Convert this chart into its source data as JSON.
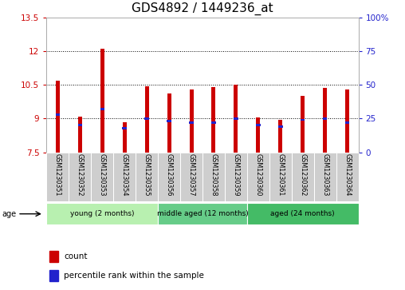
{
  "title": "GDS4892 / 1449236_at",
  "samples": [
    "GSM1230351",
    "GSM1230352",
    "GSM1230353",
    "GSM1230354",
    "GSM1230355",
    "GSM1230356",
    "GSM1230357",
    "GSM1230358",
    "GSM1230359",
    "GSM1230360",
    "GSM1230361",
    "GSM1230362",
    "GSM1230363",
    "GSM1230364"
  ],
  "bar_values": [
    10.7,
    9.1,
    12.1,
    8.85,
    10.45,
    10.1,
    10.3,
    10.4,
    10.5,
    9.05,
    8.95,
    10.0,
    10.35,
    10.3
  ],
  "percentile_values": [
    28,
    20,
    32,
    18,
    25,
    23,
    22,
    22,
    25,
    20,
    19,
    24,
    25,
    22
  ],
  "ymin": 7.5,
  "ymax": 13.5,
  "yticks": [
    7.5,
    9.0,
    10.5,
    12.0,
    13.5
  ],
  "ytick_labels": [
    "7.5",
    "9",
    "10.5",
    "12",
    "13.5"
  ],
  "right_yticks": [
    0,
    25,
    50,
    75,
    100
  ],
  "right_ytick_labels": [
    "0",
    "25",
    "50",
    "75",
    "100%"
  ],
  "bar_color": "#cc0000",
  "blue_color": "#2222cc",
  "bar_width": 0.18,
  "groups": [
    {
      "label": "young (2 months)",
      "indices": [
        0,
        1,
        2,
        3,
        4
      ]
    },
    {
      "label": "middle aged (12 months)",
      "indices": [
        5,
        6,
        7,
        8
      ]
    },
    {
      "label": "aged (24 months)",
      "indices": [
        9,
        10,
        11,
        12,
        13
      ]
    }
  ],
  "group_colors": [
    "#b8f0b0",
    "#66cc88",
    "#44bb66"
  ],
  "age_label": "age",
  "legend_count_label": "count",
  "legend_pct_label": "percentile rank within the sample",
  "title_fontsize": 11,
  "tick_fontsize": 7.5,
  "sample_fontsize": 5.8
}
